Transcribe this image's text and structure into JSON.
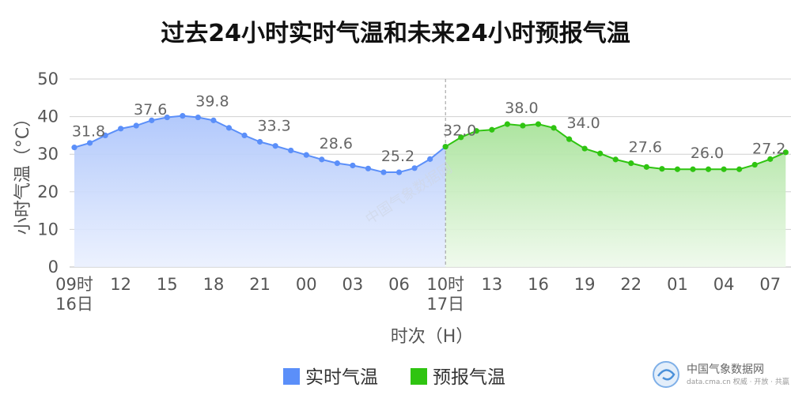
{
  "chart_data": {
    "type": "area",
    "title": "过去24小时实时气温和未来24小时预报气温",
    "ylabel": "小时气温（°C）",
    "xlabel": "时次（H）",
    "ylim": [
      0,
      50
    ],
    "yticks": [
      "0",
      "10",
      "20",
      "30",
      "40",
      "50"
    ],
    "grid": true,
    "legend_position": "bottom",
    "x_tick_labels": [
      {
        "hour": 0,
        "line1": "09时",
        "line2": "16日"
      },
      {
        "hour": 3,
        "line1": "12"
      },
      {
        "hour": 6,
        "line1": "15"
      },
      {
        "hour": 9,
        "line1": "18"
      },
      {
        "hour": 12,
        "line1": "21"
      },
      {
        "hour": 15,
        "line1": "00"
      },
      {
        "hour": 18,
        "line1": "03"
      },
      {
        "hour": 21,
        "line1": "06"
      },
      {
        "hour": 24,
        "line1": "10时",
        "line2": "17日"
      },
      {
        "hour": 27,
        "line1": "13"
      },
      {
        "hour": 30,
        "line1": "16"
      },
      {
        "hour": 33,
        "line1": "19"
      },
      {
        "hour": 36,
        "line1": "22"
      },
      {
        "hour": 39,
        "line1": "01"
      },
      {
        "hour": 42,
        "line1": "04"
      },
      {
        "hour": 45,
        "line1": "07"
      }
    ],
    "series": [
      {
        "name": "实时气温",
        "color": "#5b8ff9",
        "x": [
          0,
          1,
          2,
          3,
          4,
          5,
          6,
          7,
          8,
          9,
          10,
          11,
          12,
          13,
          14,
          15,
          16,
          17,
          18,
          19,
          20,
          21,
          22,
          23,
          24
        ],
        "values": [
          31.8,
          33.0,
          35.0,
          36.8,
          37.6,
          39.0,
          39.8,
          40.2,
          39.8,
          39.0,
          37.0,
          35.0,
          33.3,
          32.2,
          31.0,
          29.8,
          28.6,
          27.6,
          27.0,
          26.2,
          25.2,
          25.2,
          26.3,
          28.7,
          32.0
        ]
      },
      {
        "name": "预报气温",
        "color": "#2fc411",
        "x": [
          24,
          25,
          26,
          27,
          28,
          29,
          30,
          31,
          32,
          33,
          34,
          35,
          36,
          37,
          38,
          39,
          40,
          41,
          42,
          43,
          44,
          45,
          46
        ],
        "values": [
          32.0,
          34.5,
          36.2,
          36.5,
          38.0,
          37.6,
          38.0,
          37.0,
          34.0,
          31.5,
          30.2,
          28.6,
          27.6,
          26.6,
          26.1,
          26.0,
          26.0,
          26.0,
          26.0,
          26.0,
          27.2,
          28.7,
          30.5
        ]
      }
    ],
    "data_labels": [
      {
        "x": 0,
        "value": 31.8,
        "text": "31.8"
      },
      {
        "x": 4,
        "value": 37.6,
        "text": "37.6"
      },
      {
        "x": 8,
        "value": 39.8,
        "text": "39.8"
      },
      {
        "x": 12,
        "value": 33.3,
        "text": "33.3"
      },
      {
        "x": 16,
        "value": 28.6,
        "text": "28.6"
      },
      {
        "x": 20,
        "value": 25.2,
        "text": "25.2"
      },
      {
        "x": 24,
        "value": 32.0,
        "text": "32.0"
      },
      {
        "x": 28,
        "value": 38.0,
        "text": "38.0"
      },
      {
        "x": 32,
        "value": 34.0,
        "text": "34.0"
      },
      {
        "x": 36,
        "value": 27.6,
        "text": "27.6"
      },
      {
        "x": 40,
        "value": 26.0,
        "text": "26.0"
      },
      {
        "x": 44,
        "value": 27.2,
        "text": "27.2"
      }
    ],
    "divider_x": 24
  },
  "watermark": "中国气象数据网",
  "logo": {
    "name": "中国气象数据网",
    "sub": "data.cma.cn 权威 · 开放 · 共赢"
  }
}
